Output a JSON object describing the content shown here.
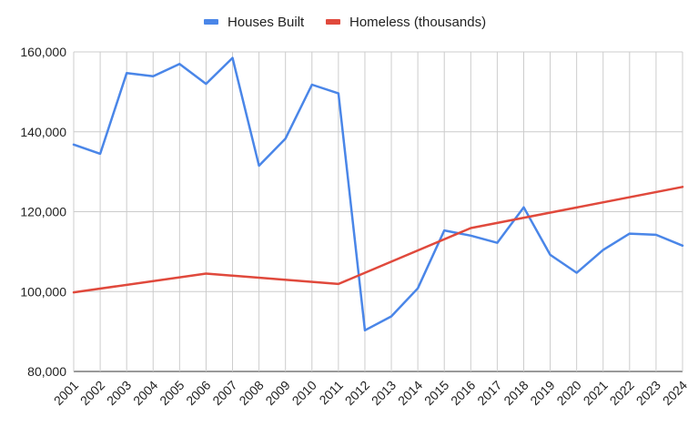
{
  "chart_data": {
    "type": "line",
    "title": "",
    "xlabel": "",
    "ylabel": "",
    "categories": [
      "2001",
      "2002",
      "2003",
      "2004",
      "2005",
      "2006",
      "2007",
      "2008",
      "2009",
      "2010",
      "2011",
      "2012",
      "2013",
      "2014",
      "2015",
      "2016",
      "2017",
      "2018",
      "2019",
      "2020",
      "2021",
      "2022",
      "2023",
      "2024"
    ],
    "ylim": [
      80000,
      160000
    ],
    "yticks": [
      80000,
      100000,
      120000,
      140000,
      160000
    ],
    "ytick_labels": [
      "80,000",
      "100,000",
      "120,000",
      "140,000",
      "160,000"
    ],
    "grid": true,
    "legend_position": "top-center",
    "series": [
      {
        "name": "Houses Built",
        "color": "#4a86e8",
        "values": [
          136800,
          134500,
          154700,
          153900,
          157000,
          152000,
          158500,
          131500,
          138300,
          151800,
          149600,
          90300,
          93800,
          100800,
          115300,
          114000,
          112200,
          121100,
          109200,
          104700,
          110400,
          114500,
          114200,
          111500
        ]
      },
      {
        "name": "Homeless (thousands)",
        "color": "#e0493c",
        "values": [
          99800,
          null,
          null,
          null,
          null,
          104500,
          null,
          null,
          null,
          null,
          101900,
          null,
          null,
          null,
          null,
          115900,
          null,
          null,
          null,
          null,
          null,
          null,
          null,
          126200
        ]
      }
    ]
  }
}
